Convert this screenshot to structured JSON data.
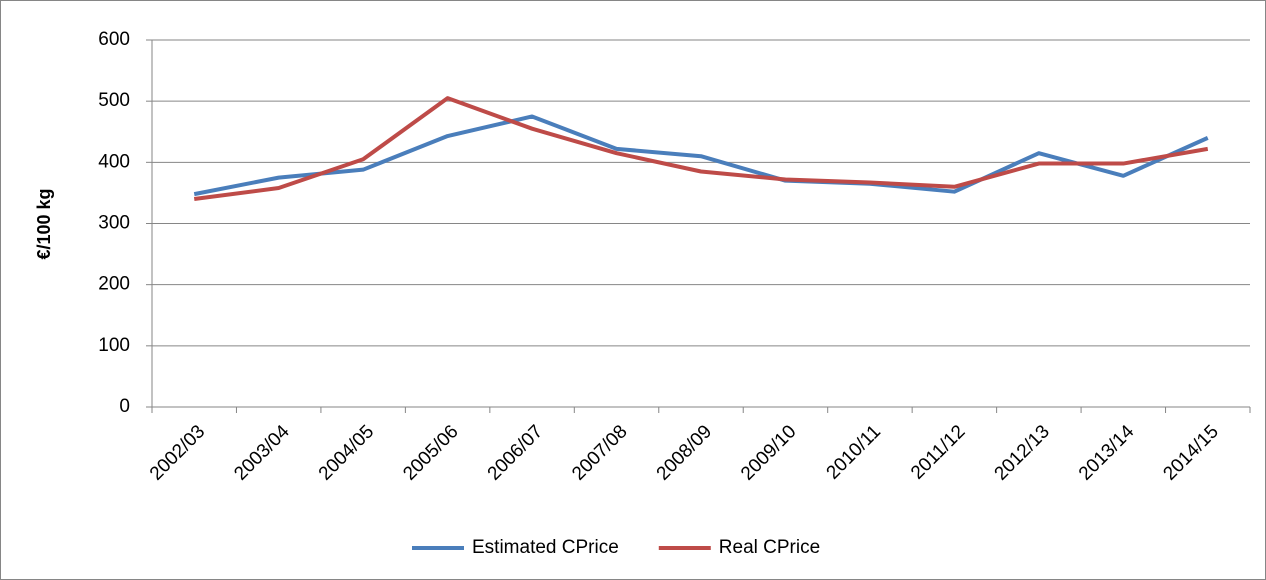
{
  "chart_data": {
    "type": "line",
    "ylabel": "€/100 kg",
    "categories": [
      "2002/03",
      "2003/04",
      "2004/05",
      "2005/06",
      "2006/07",
      "2007/08",
      "2008/09",
      "2009/10",
      "2010/11",
      "2011/12",
      "2012/13",
      "2013/14",
      "2014/15"
    ],
    "series": [
      {
        "name": "Estimated CPrice",
        "color": "#4a7ebb",
        "values": [
          348,
          375,
          388,
          443,
          475,
          422,
          410,
          370,
          365,
          352,
          415,
          378,
          440
        ]
      },
      {
        "name": "Real CPrice",
        "color": "#be4b48",
        "values": [
          340,
          358,
          405,
          505,
          455,
          415,
          385,
          372,
          367,
          360,
          398,
          398,
          422
        ]
      }
    ],
    "ylim": [
      0,
      600
    ],
    "yticks": [
      0,
      100,
      200,
      300,
      400,
      500,
      600
    ],
    "grid": true,
    "legend": "bottom"
  }
}
